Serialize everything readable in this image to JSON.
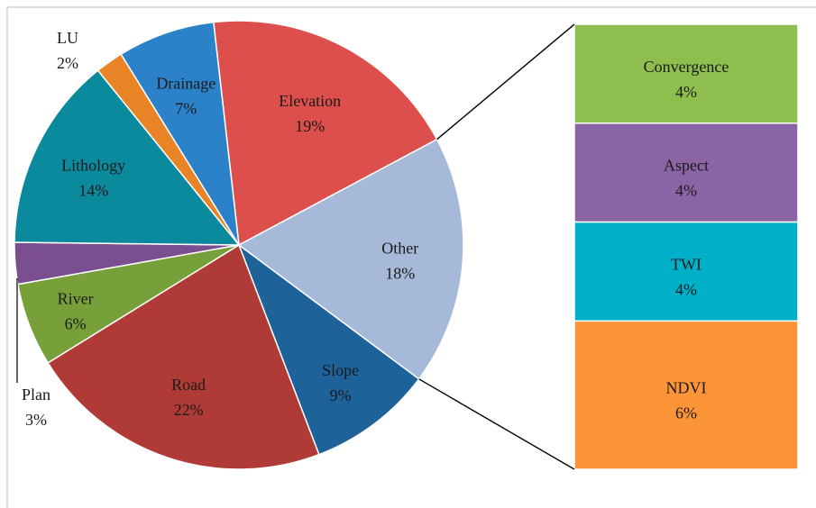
{
  "chart_data": {
    "type": "bar-of-pie",
    "title": "",
    "pie": {
      "slices": [
        {
          "name": "Elevation",
          "value": 19,
          "label": "19%",
          "color": "#DD4F4C"
        },
        {
          "name": "Other",
          "value": 18,
          "label": "18%",
          "color": "#A6B9D9"
        },
        {
          "name": "Slope",
          "value": 9,
          "label": "9%",
          "color": "#1D6299"
        },
        {
          "name": "Road",
          "value": 22,
          "label": "22%",
          "color": "#B03B36"
        },
        {
          "name": "River",
          "value": 6,
          "label": "6%",
          "color": "#77A03A"
        },
        {
          "name": "Plan",
          "value": 3,
          "label": "3%",
          "color": "#7A4E8F"
        },
        {
          "name": "Lithology",
          "value": 14,
          "label": "14%",
          "color": "#0A8A9C"
        },
        {
          "name": "LU",
          "value": 2,
          "label": "2%",
          "color": "#E88425"
        },
        {
          "name": "Drainage",
          "value": 7,
          "label": "7%",
          "color": "#2C82C9"
        }
      ]
    },
    "bar": {
      "segments": [
        {
          "name": "Convergence",
          "value": 4,
          "label": "4%",
          "color": "#8DBE4E"
        },
        {
          "name": "Aspect",
          "value": 4,
          "label": "4%",
          "color": "#8B64A5"
        },
        {
          "name": "TWI",
          "value": 4,
          "label": "4%",
          "color": "#00B0C8"
        },
        {
          "name": "NDVI",
          "value": 6,
          "label": "6%",
          "color": "#FD9438"
        }
      ]
    }
  }
}
